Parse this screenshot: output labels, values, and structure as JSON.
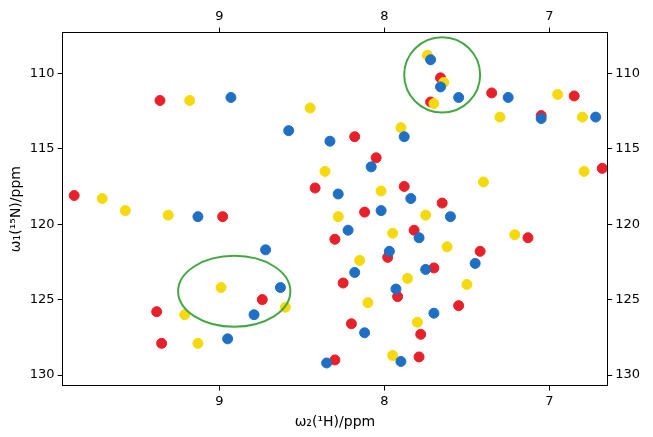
{
  "chart_data": {
    "type": "scatter",
    "x_label": "ω₂(¹H)/ppm",
    "y_label": "ω₁(¹⁵N)/ppm",
    "xlim": [
      9.95,
      6.65
    ],
    "ylim": [
      130.7,
      107.3
    ],
    "xticks": [
      9,
      8,
      7
    ],
    "yticks": [
      110,
      115,
      120,
      125,
      130
    ],
    "grid": false,
    "marker": "circle",
    "series": [
      {
        "color": "#e8202a",
        "x": [
          9.88,
          9.36,
          9.38,
          9.35,
          8.74,
          8.98,
          8.42,
          8.3,
          8.25,
          8.2,
          8.12,
          8.05,
          7.98,
          7.92,
          7.88,
          7.82,
          7.78,
          7.72,
          7.7,
          7.65,
          7.55,
          7.42,
          7.35,
          7.05,
          6.85,
          7.13,
          6.68,
          7.79,
          8.3,
          8.18,
          7.66
        ],
        "y": [
          118.1,
          111.8,
          125.8,
          127.9,
          125.0,
          119.5,
          117.6,
          121.0,
          123.9,
          126.6,
          119.2,
          115.6,
          122.2,
          124.8,
          117.5,
          120.4,
          127.3,
          111.9,
          122.9,
          118.6,
          125.4,
          121.8,
          111.3,
          112.8,
          111.5,
          120.9,
          116.3,
          128.8,
          129.0,
          114.2,
          110.3
        ]
      },
      {
        "color": "#f5d90a",
        "x": [
          9.71,
          9.57,
          9.31,
          9.18,
          9.21,
          9.13,
          8.99,
          8.6,
          8.36,
          8.28,
          8.15,
          8.1,
          8.02,
          7.95,
          7.9,
          7.86,
          7.8,
          7.74,
          7.64,
          7.7,
          7.75,
          7.62,
          7.5,
          7.4,
          7.3,
          6.95,
          6.8,
          7.21,
          6.79,
          7.95,
          8.45
        ],
        "y": [
          118.3,
          119.1,
          119.4,
          111.8,
          126.0,
          127.9,
          124.2,
          125.5,
          116.5,
          119.5,
          122.4,
          125.2,
          117.8,
          120.6,
          113.6,
          123.6,
          126.5,
          108.8,
          110.6,
          112.0,
          119.4,
          121.5,
          124.0,
          117.2,
          112.9,
          111.4,
          112.9,
          120.7,
          116.5,
          128.7,
          112.3
        ]
      },
      {
        "color": "#1f6fc4",
        "x": [
          9.13,
          8.93,
          8.95,
          8.79,
          8.63,
          8.72,
          8.58,
          8.33,
          8.28,
          8.22,
          8.18,
          8.12,
          8.08,
          8.02,
          7.97,
          7.93,
          7.88,
          7.84,
          7.79,
          7.75,
          7.7,
          7.72,
          7.66,
          7.55,
          7.6,
          7.45,
          7.25,
          7.05,
          6.72,
          8.35,
          7.9
        ],
        "y": [
          119.5,
          111.6,
          127.6,
          126.0,
          124.2,
          121.7,
          113.8,
          114.5,
          118.0,
          120.4,
          123.2,
          127.2,
          116.2,
          119.1,
          121.8,
          124.3,
          114.2,
          118.3,
          120.9,
          123.0,
          125.9,
          109.1,
          110.9,
          111.6,
          119.5,
          122.6,
          111.6,
          113.0,
          112.9,
          129.2,
          129.1
        ]
      }
    ],
    "circles": [
      {
        "x": [
          7.42,
          7.88
        ],
        "y": [
          107.6,
          112.6
        ],
        "color": "#43a843"
      },
      {
        "x": [
          8.57,
          9.25
        ],
        "y": [
          122.1,
          126.8
        ],
        "color": "#43a843"
      }
    ]
  }
}
